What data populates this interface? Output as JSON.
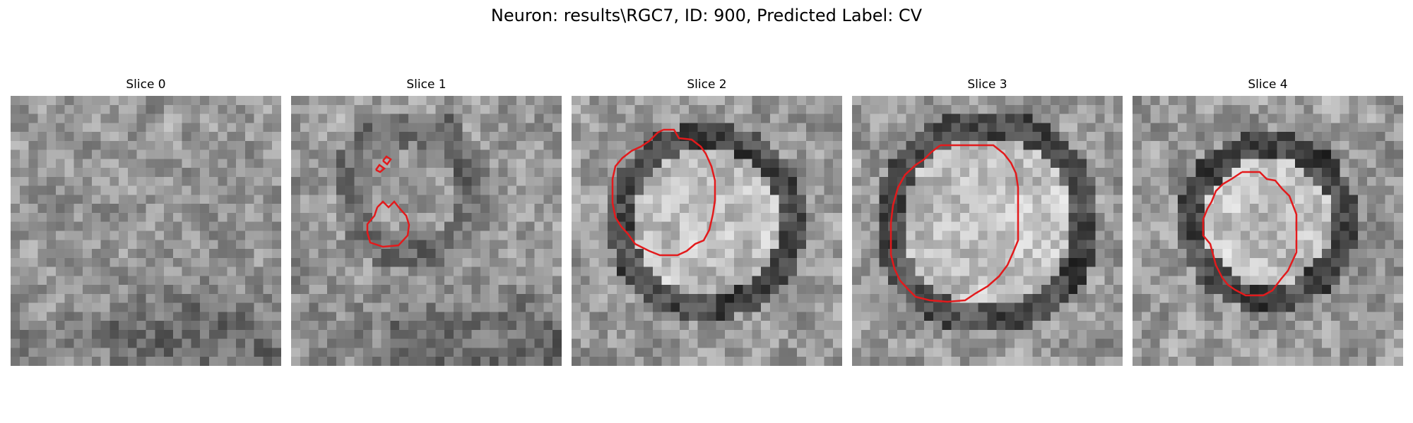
{
  "figure": {
    "title": "Neuron: results\\RGC7, ID: 900, Predicted Label: CV",
    "contour_color": "#e31a1c",
    "panels": [
      {
        "title": "Slice 0",
        "seed": 11,
        "has_ring": false
      },
      {
        "title": "Slice 1",
        "seed": 23,
        "has_ring": false
      },
      {
        "title": "Slice 2",
        "seed": 37,
        "has_ring": true
      },
      {
        "title": "Slice 3",
        "seed": 41,
        "has_ring": true
      },
      {
        "title": "Slice 4",
        "seed": 53,
        "has_ring": true
      }
    ]
  }
}
